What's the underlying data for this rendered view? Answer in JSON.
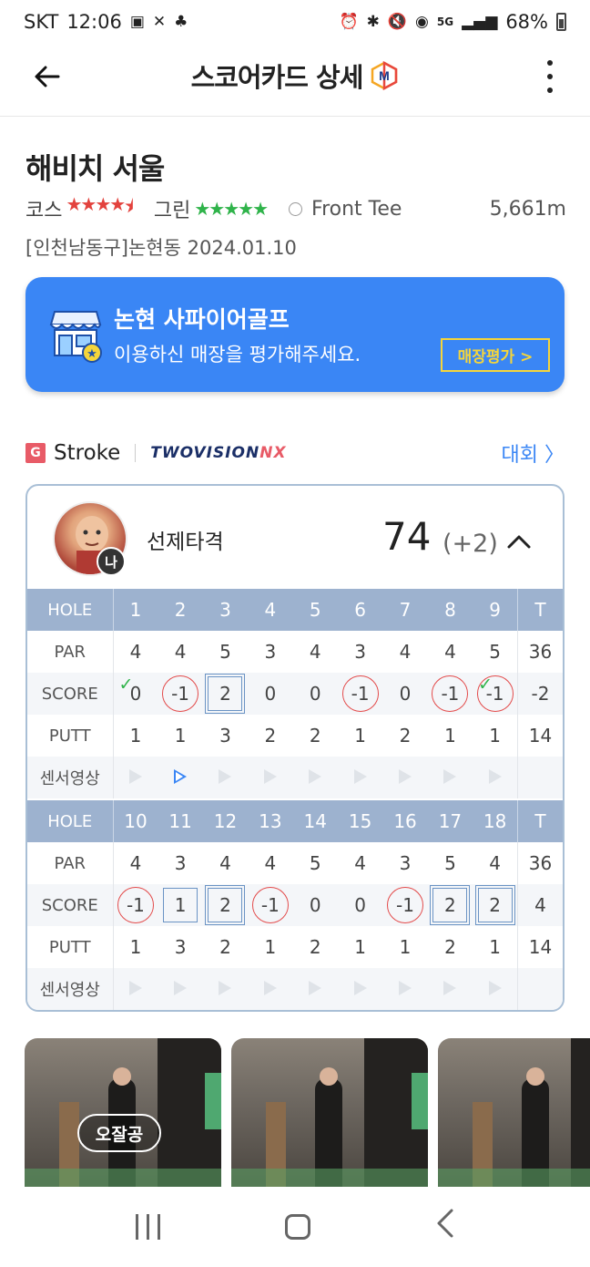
{
  "status_bar": {
    "carrier": "SKT",
    "time": "12:06",
    "network": "5G",
    "battery": "68%"
  },
  "app_bar": {
    "title": "스코어카드 상세"
  },
  "course": {
    "name": "해비치 서울",
    "course_label": "코스",
    "course_rating": 4.5,
    "green_label": "그린",
    "green_rating": 5,
    "tee": "Front Tee",
    "distance": "5,661m",
    "location_date": "[인천남동구]논현동 2024.01.10"
  },
  "banner": {
    "title": "논현 사파이어골프",
    "subtitle": "이용하신 매장을 평가해주세요.",
    "button_label": "매장평가 >"
  },
  "mode": {
    "badge": "G",
    "label": "Stroke",
    "brand_main": "TWOVISION",
    "brand_suffix": "NX",
    "link_label": "대회 〉"
  },
  "player": {
    "name": "선제타격",
    "rank_badge": "나",
    "total": "74",
    "diff": "(+2)"
  },
  "scorecard": {
    "row_labels": {
      "hole": "HOLE",
      "par": "PAR",
      "score": "SCORE",
      "putt": "PUTT",
      "video": "센서영상",
      "total": "T"
    },
    "front": {
      "holes": [
        "1",
        "2",
        "3",
        "4",
        "5",
        "6",
        "7",
        "8",
        "9"
      ],
      "par": [
        "4",
        "4",
        "5",
        "3",
        "4",
        "3",
        "4",
        "4",
        "5"
      ],
      "par_total": "36",
      "score": [
        "0",
        "-1",
        "2",
        "0",
        "0",
        "-1",
        "0",
        "-1",
        "-1"
      ],
      "score_total": "-2",
      "putt": [
        "1",
        "1",
        "3",
        "2",
        "2",
        "1",
        "2",
        "1",
        "1"
      ],
      "putt_total": "14"
    },
    "back": {
      "holes": [
        "10",
        "11",
        "12",
        "13",
        "14",
        "15",
        "16",
        "17",
        "18"
      ],
      "par": [
        "4",
        "3",
        "4",
        "4",
        "5",
        "4",
        "3",
        "5",
        "4"
      ],
      "par_total": "36",
      "score": [
        "-1",
        "1",
        "2",
        "-1",
        "0",
        "0",
        "-1",
        "2",
        "2"
      ],
      "score_total": "4",
      "putt": [
        "1",
        "3",
        "2",
        "1",
        "2",
        "1",
        "1",
        "2",
        "1"
      ],
      "putt_total": "14"
    }
  },
  "thumbnails": {
    "tag": "오잘공"
  },
  "colors": {
    "accent_blue": "#3a86f5",
    "header_row": "#9db2cf",
    "birdie_circle": "#e34b4b",
    "bogey_square": "#6a93c4",
    "star_red": "#e3423d",
    "star_green": "#2fb34a"
  }
}
